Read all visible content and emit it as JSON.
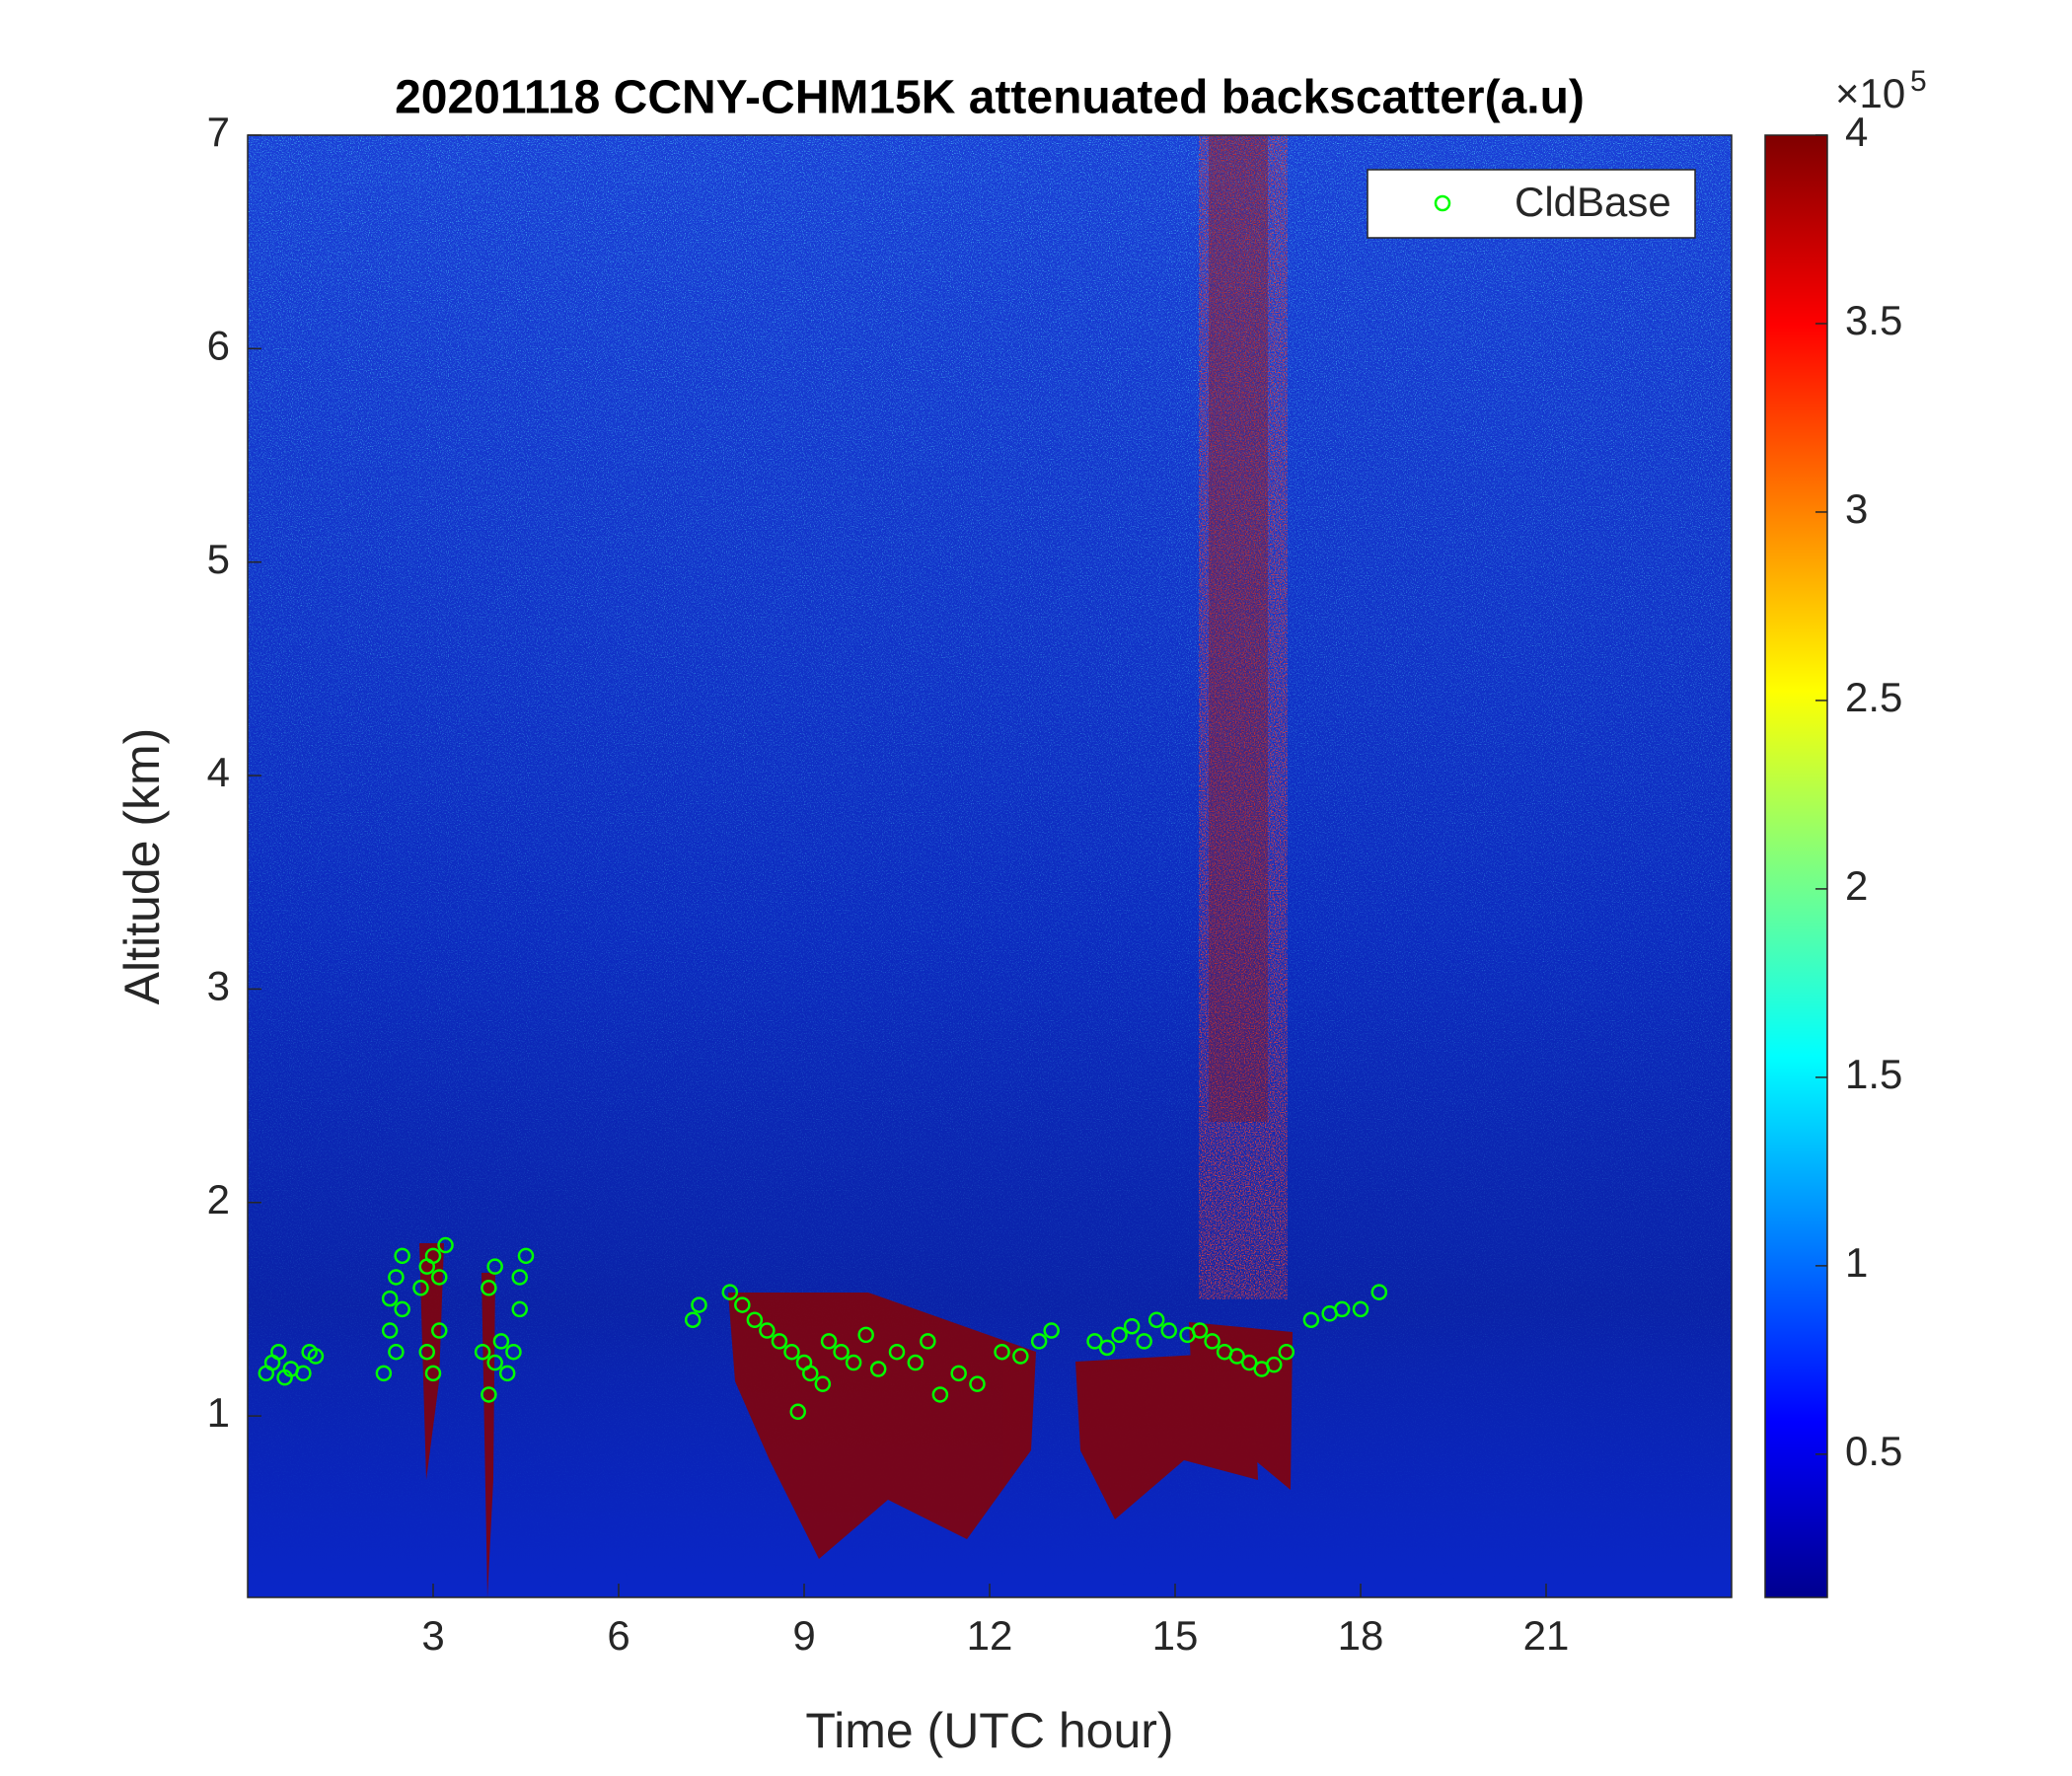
{
  "chart_data": {
    "type": "scatter",
    "title": "20201118 CCNY-CHM15K attenuated backscatter(a.u)",
    "x_label": "Time (UTC hour)",
    "y_label": "Altitude (km)",
    "xlim": [
      0,
      24
    ],
    "xticks": [
      3,
      6,
      9,
      12,
      15,
      18,
      21
    ],
    "ylim": [
      0.15,
      7
    ],
    "yticks": [
      1,
      2,
      3,
      4,
      5,
      6,
      7
    ],
    "legend_position": "upper right",
    "colorbar": {
      "lim": [
        0.12,
        4
      ],
      "ticks": [
        0.5,
        1,
        1.5,
        2,
        2.5,
        3,
        3.5,
        4
      ],
      "multiplier_label": "×10",
      "multiplier_exponent": "5"
    },
    "series": [
      {
        "name": "CldBase",
        "color": "#00ff00",
        "x": [
          0.3,
          0.4,
          0.5,
          0.6,
          0.7,
          0.9,
          1.0,
          1.1,
          2.2,
          2.3,
          2.3,
          2.4,
          2.4,
          2.5,
          2.5,
          2.8,
          2.9,
          2.9,
          3.0,
          3.0,
          3.1,
          3.1,
          3.2,
          3.8,
          3.9,
          3.9,
          4.0,
          4.0,
          4.1,
          4.2,
          4.3,
          4.4,
          4.4,
          4.5,
          7.2,
          7.3,
          7.8,
          8.0,
          8.2,
          8.4,
          8.6,
          8.8,
          8.9,
          9.0,
          9.1,
          9.3,
          9.4,
          9.6,
          9.8,
          10.0,
          10.2,
          10.5,
          10.8,
          11.0,
          11.2,
          11.5,
          11.8,
          12.2,
          12.5,
          12.8,
          13.0,
          13.7,
          13.9,
          14.1,
          14.3,
          14.5,
          14.7,
          14.9,
          15.2,
          15.4,
          15.6,
          15.8,
          16.0,
          16.2,
          16.4,
          16.6,
          16.8,
          17.2,
          17.5,
          17.7,
          18.0,
          18.3
        ],
        "values": [
          1.2,
          1.25,
          1.3,
          1.18,
          1.22,
          1.2,
          1.3,
          1.28,
          1.2,
          1.4,
          1.55,
          1.65,
          1.3,
          1.75,
          1.5,
          1.6,
          1.3,
          1.7,
          1.2,
          1.75,
          1.65,
          1.4,
          1.8,
          1.3,
          1.6,
          1.1,
          1.7,
          1.25,
          1.35,
          1.2,
          1.3,
          1.5,
          1.65,
          1.75,
          1.45,
          1.52,
          1.58,
          1.52,
          1.45,
          1.4,
          1.35,
          1.3,
          1.02,
          1.25,
          1.2,
          1.15,
          1.35,
          1.3,
          1.25,
          1.38,
          1.22,
          1.3,
          1.25,
          1.35,
          1.1,
          1.2,
          1.15,
          1.3,
          1.28,
          1.35,
          1.4,
          1.35,
          1.32,
          1.38,
          1.42,
          1.35,
          1.45,
          1.4,
          1.38,
          1.4,
          1.35,
          1.3,
          1.28,
          1.25,
          1.22,
          1.24,
          1.3,
          1.45,
          1.48,
          1.5,
          1.5,
          1.58
        ]
      }
    ]
  }
}
